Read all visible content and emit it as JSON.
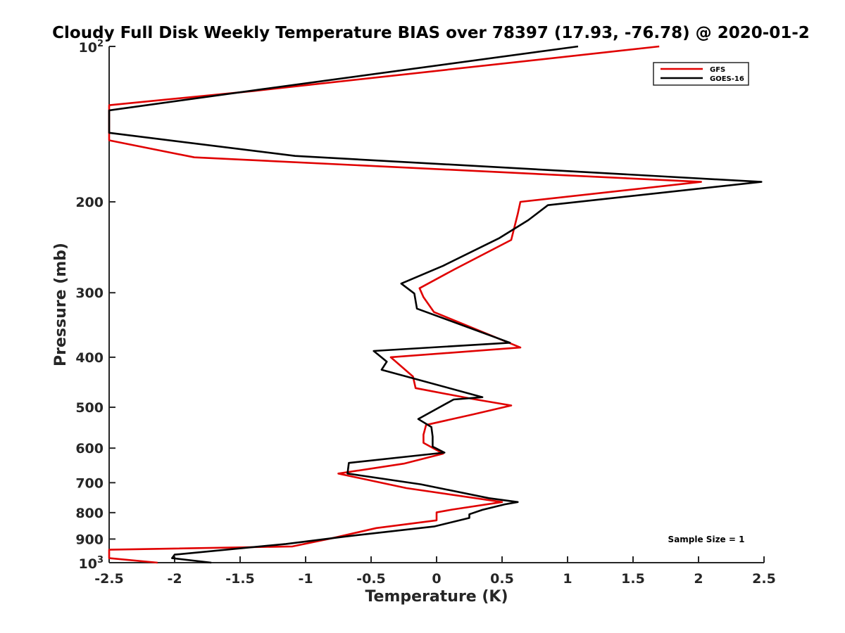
{
  "chart_data": {
    "type": "line",
    "title": "Cloudy Full Disk Weekly Temperature BIAS over 78397 (17.93, -76.78) @ 2020-01-2",
    "xlabel": "Temperature (K)",
    "ylabel": "Pressure (mb)",
    "xlim": [
      -2.5,
      2.5
    ],
    "ylim": [
      1000,
      100
    ],
    "y_scale": "log",
    "x_ticks": [
      "-2.5",
      "-2",
      "-1.5",
      "-1",
      "-0.5",
      "0",
      "0.5",
      "1",
      "1.5",
      "2",
      "2.5"
    ],
    "y_ticks": [
      {
        "value": 100,
        "base": "10",
        "exp": "2"
      },
      {
        "value": 200,
        "label": "200"
      },
      {
        "value": 300,
        "label": "300"
      },
      {
        "value": 400,
        "label": "400"
      },
      {
        "value": 500,
        "label": "500"
      },
      {
        "value": 600,
        "label": "600"
      },
      {
        "value": 700,
        "label": "700"
      },
      {
        "value": 800,
        "label": "800"
      },
      {
        "value": 900,
        "label": "900"
      },
      {
        "value": 1000,
        "base": "10",
        "exp": "3"
      }
    ],
    "legend_position": "top-right",
    "annotation": "Sample Size = 1",
    "series": [
      {
        "name": "GFS",
        "color": "#e00000",
        "x": [
          1.7,
          -1.4,
          -2.5,
          -2.5,
          -2.5,
          -1.85,
          2.02,
          0.64,
          0.62,
          0.57,
          0.14,
          -0.13,
          -0.1,
          -0.02,
          0.64,
          -0.35,
          -0.18,
          -0.16,
          0.28,
          0.57,
          0.28,
          -0.08,
          -0.1,
          -0.1,
          0.05,
          -0.25,
          -0.75,
          -0.23,
          0.5,
          0.12,
          0.0,
          0.0,
          -0.46,
          -0.8,
          -1.1,
          -2.5,
          -2.5,
          -2.13
        ],
        "y": [
          100,
          122,
          130,
          140,
          152,
          164,
          183,
          200,
          211,
          237,
          270,
          294,
          306,
          327,
          383,
          400,
          436,
          459,
          482,
          496,
          516,
          541,
          565,
          586,
          615,
          643,
          672,
          717,
          763,
          789,
          799,
          828,
          857,
          897,
          930,
          944,
          980,
          1000
        ]
      },
      {
        "name": "GOES-16",
        "color": "#000000",
        "x": [
          1.08,
          -1.33,
          -2.5,
          -2.5,
          -2.5,
          -1.08,
          2.48,
          0.85,
          0.7,
          0.48,
          0.05,
          -0.27,
          -0.17,
          -0.15,
          0.56,
          -0.48,
          -0.38,
          -0.42,
          0.35,
          0.13,
          -0.14,
          -0.04,
          -0.03,
          -0.03,
          0.06,
          -0.67,
          -0.68,
          -0.12,
          0.4,
          0.62,
          0.52,
          0.35,
          0.25,
          0.25,
          -0.02,
          -0.7,
          -1.15,
          -2.0,
          -2.02,
          -1.72
        ],
        "y": [
          100,
          121,
          133,
          142,
          147,
          163,
          183,
          203,
          217,
          235,
          266,
          288,
          301,
          322,
          375,
          389,
          408,
          423,
          478,
          483,
          527,
          546,
          570,
          596,
          612,
          641,
          672,
          705,
          750,
          763,
          771,
          790,
          806,
          819,
          851,
          890,
          920,
          965,
          980,
          1000
        ]
      }
    ]
  }
}
